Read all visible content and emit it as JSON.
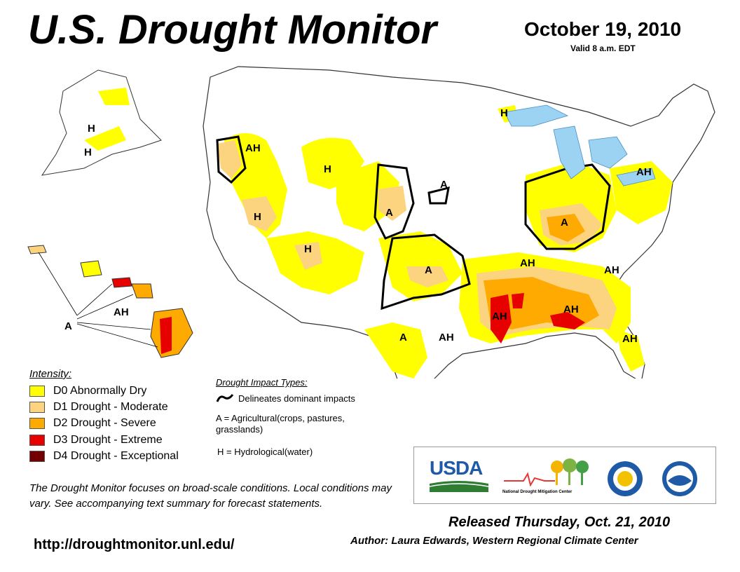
{
  "header": {
    "title": "U.S. Drought Monitor",
    "date": "October 19, 2010",
    "valid": "Valid 8 a.m. EDT"
  },
  "colors": {
    "d0": "#ffff00",
    "d1": "#fcd37f",
    "d2": "#ffaa00",
    "d3": "#e60000",
    "d4": "#730000",
    "water": "#9cd3f2",
    "outline": "#000000"
  },
  "legend": {
    "title": "Intensity:",
    "items": [
      {
        "code": "D0",
        "label": "D0 Abnormally Dry"
      },
      {
        "code": "D1",
        "label": "D1 Drought - Moderate"
      },
      {
        "code": "D2",
        "label": "D2 Drought - Severe"
      },
      {
        "code": "D3",
        "label": "D3 Drought - Extreme"
      },
      {
        "code": "D4",
        "label": "D4 Drought - Exceptional"
      }
    ]
  },
  "impacts": {
    "title": "Drought Impact Types:",
    "delineates": "Delineates dominant impacts",
    "agricultural": "A = Agricultural(crops, pastures, grasslands)",
    "hydrological": "H = Hydrological(water)"
  },
  "map_labels": [
    "H",
    "H",
    "AH",
    "H",
    "H",
    "A",
    "A",
    "H",
    "A",
    "H",
    "A",
    "AH",
    "AH",
    "A",
    "AH",
    "AH",
    "AH",
    "AH",
    "AH",
    "A",
    "AH"
  ],
  "note": "The Drought Monitor focuses on broad-scale conditions. Local conditions may vary. See accompanying text summary for forecast statements.",
  "url": "http://droughtmonitor.unl.edu/",
  "footer": {
    "released": "Released Thursday, Oct. 21, 2010",
    "author": "Author: Laura Edwards, Western Regional Climate Center"
  },
  "logos": {
    "usda": "USDA",
    "ndmc": "National Drought Mitigation Center"
  }
}
